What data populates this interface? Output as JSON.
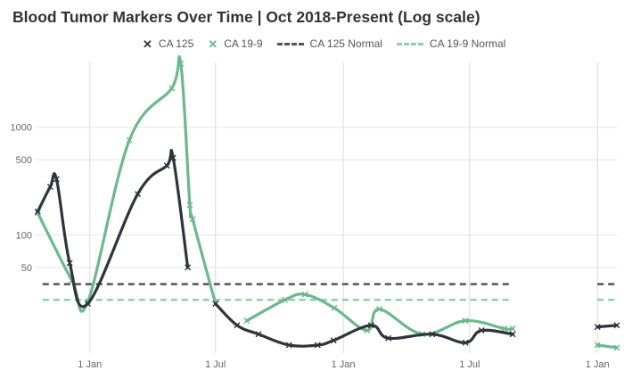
{
  "chart_data": {
    "type": "line",
    "title": "Blood Tumor Markers Over Time | Oct 2018-Present (Log scale)",
    "y_scale": "log",
    "ylim": [
      8,
      4000
    ],
    "y_ticks": [
      {
        "value": 1000,
        "label": "1000"
      },
      {
        "value": 500,
        "label": "500"
      },
      {
        "value": 100,
        "label": "100"
      },
      {
        "value": 50,
        "label": "50"
      }
    ],
    "x_range": [
      "2018-10-15",
      "2021-01-29"
    ],
    "x_ticks": [
      {
        "date": "2019-01-01",
        "label": "1 Jan"
      },
      {
        "date": "2019-07-01",
        "label": "1 Jul"
      },
      {
        "date": "2020-01-01",
        "label": "1 Jan"
      },
      {
        "date": "2020-07-01",
        "label": "1 Jul"
      },
      {
        "date": "2021-01-01",
        "label": "1 Jan"
      }
    ],
    "grid": "vertical",
    "legend_position": "top",
    "series": [
      {
        "name": "CA 125",
        "color": "#2f343b",
        "style": "solid",
        "marker": "x",
        "segments": [
          [
            [
              "2018-10-18",
              165
            ],
            [
              "2018-11-05",
              280
            ],
            [
              "2018-11-14",
              330
            ],
            [
              "2018-12-03",
              55
            ],
            [
              "2018-12-29",
              23
            ],
            [
              "2019-03-11",
              240
            ],
            [
              "2019-04-22",
              440
            ],
            [
              "2019-05-01",
              520
            ],
            [
              "2019-05-22",
              50
            ]
          ],
          [
            [
              "2019-07-01",
              23
            ],
            [
              "2019-08-01",
              14.5
            ],
            [
              "2019-09-01",
              12
            ],
            [
              "2019-10-15",
              9.5
            ],
            [
              "2019-11-25",
              9.5
            ],
            [
              "2019-12-18",
              10.5
            ],
            [
              "2020-02-10",
              14.5
            ],
            [
              "2020-03-06",
              11
            ],
            [
              "2020-05-08",
              12
            ],
            [
              "2020-06-25",
              10
            ],
            [
              "2020-07-18",
              13
            ],
            [
              "2020-09-01",
              12
            ]
          ],
          [
            [
              "2021-01-01",
              14
            ],
            [
              "2021-01-29",
              14.5
            ]
          ]
        ]
      },
      {
        "name": "CA 19-9",
        "color": "#6db88b",
        "style": "solid",
        "marker": "x",
        "segments": [
          [
            [
              "2018-10-18",
              160
            ],
            [
              "2018-12-06",
              38
            ],
            [
              "2018-12-29",
              24
            ],
            [
              "2019-02-27",
              760
            ],
            [
              "2019-04-29",
              2300
            ],
            [
              "2019-05-12",
              3900
            ],
            [
              "2019-05-25",
              190
            ],
            [
              "2019-05-29",
              140
            ],
            [
              "2019-07-01",
              23
            ]
          ],
          [
            [
              "2019-08-15",
              16
            ],
            [
              "2019-10-09",
              25
            ],
            [
              "2019-11-07",
              28
            ],
            [
              "2019-12-19",
              21
            ],
            [
              "2020-02-04",
              13
            ],
            [
              "2020-02-22",
              20.5
            ],
            [
              "2020-04-24",
              12
            ],
            [
              "2020-06-25",
              16
            ],
            [
              "2020-08-20",
              13.5
            ],
            [
              "2020-09-01",
              13.5
            ]
          ],
          [
            [
              "2021-01-01",
              9.5
            ],
            [
              "2021-01-29",
              9
            ]
          ]
        ]
      },
      {
        "name": "CA 125 Normal",
        "color": "#555555",
        "style": "dashed",
        "marker": "none",
        "segments": [
          [
            [
              "2018-10-25",
              35
            ],
            [
              "2020-09-01",
              35
            ]
          ],
          [
            [
              "2021-01-01",
              35
            ],
            [
              "2021-01-29",
              35
            ]
          ]
        ]
      },
      {
        "name": "CA 19-9 Normal",
        "color": "#8fd0a8",
        "style": "dashed",
        "marker": "none",
        "segments": [
          [
            [
              "2018-10-25",
              25
            ],
            [
              "2020-09-01",
              25
            ]
          ],
          [
            [
              "2021-01-01",
              25
            ],
            [
              "2021-01-29",
              25
            ]
          ]
        ]
      }
    ]
  }
}
